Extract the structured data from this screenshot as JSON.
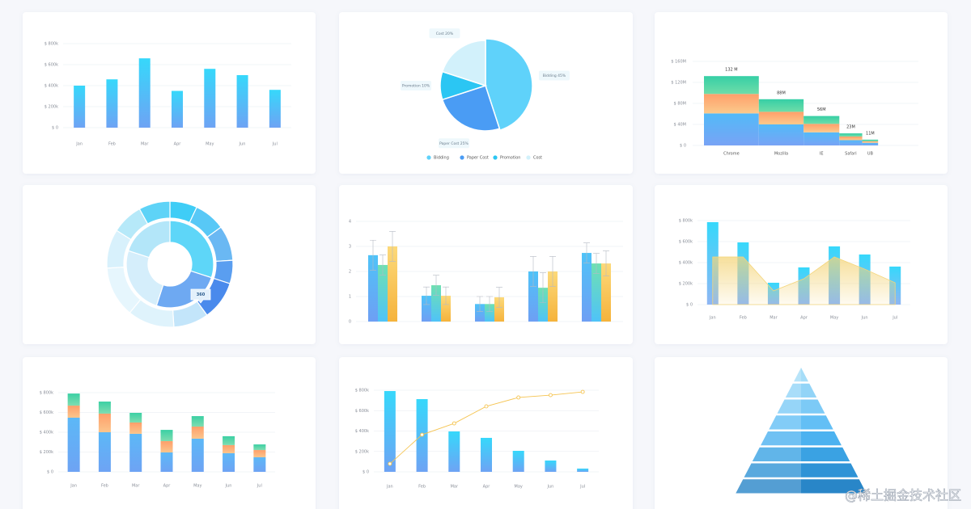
{
  "watermark": "@稀土掘金技术社区",
  "chart_data": [
    {
      "type": "bar",
      "categories": [
        "Jan",
        "Feb",
        "Mar",
        "Apr",
        "May",
        "Jun",
        "Jul"
      ],
      "values": [
        400,
        460,
        660,
        350,
        560,
        500,
        360
      ],
      "color": [
        "#36d8fb",
        "#6ea3f4"
      ],
      "ylim": [
        0,
        800
      ],
      "yticks": [
        {
          "value": 0,
          "label": "$ 0"
        },
        {
          "value": 200,
          "label": "$ 200k"
        },
        {
          "value": 400,
          "label": "$ 400k"
        },
        {
          "value": 600,
          "label": "$ 600k"
        },
        {
          "value": 800,
          "label": "$ 800k"
        }
      ],
      "grid": true
    },
    {
      "type": "pie",
      "categories": [
        "Bidding",
        "Paper Cost",
        "Promotion",
        "Cost"
      ],
      "values": [
        45,
        25,
        10,
        20
      ],
      "value_labels": [
        "Bidding 45%",
        "Paper Cost 25%",
        "Promotion 10%",
        "Cost 20%"
      ],
      "colors": [
        "#5fd2fa",
        "#4a9cf4",
        "#2bc6f3",
        "#d2f1fb"
      ],
      "legend": "bottom"
    },
    {
      "type": "marimekko",
      "categories": [
        "Chrome",
        "Mozilla",
        "IE",
        "Safari",
        "UB"
      ],
      "series": [
        {
          "values": [
            61,
            40,
            25,
            10,
            5
          ],
          "color": [
            "#52baf8",
            "#78a3f5"
          ]
        },
        {
          "values": [
            37,
            24,
            16,
            7,
            3
          ],
          "color": [
            "#ff9f6a",
            "#fbca8c"
          ]
        },
        {
          "values": [
            34,
            24,
            15,
            6,
            3
          ],
          "color": [
            "#36cfa6",
            "#6fdca8"
          ]
        }
      ],
      "total_labels": [
        "132 M",
        "88M",
        "56M",
        "23M",
        "11M"
      ],
      "ylim": [
        0,
        160
      ],
      "yticks": [
        {
          "value": 0,
          "label": "$ 0"
        },
        {
          "value": 40,
          "label": "$ 40M"
        },
        {
          "value": 80,
          "label": "$ 80M"
        },
        {
          "value": 120,
          "label": "$ 120M"
        },
        {
          "value": 160,
          "label": "$ 160M"
        }
      ],
      "grid": true
    },
    {
      "type": "sunburst",
      "rings": [
        {
          "values": [
            30,
            25,
            25,
            20
          ],
          "colors": [
            "#5ed6f8",
            "#6ea9f2",
            "#d5eefb",
            "#b3e6f9"
          ]
        },
        {
          "values": [
            7,
            8,
            9,
            6,
            10,
            9,
            12,
            13,
            10,
            8,
            8
          ],
          "colors": [
            "#3fcdf6",
            "#58c8f6",
            "#6ab8f3",
            "#5a9ef0",
            "#4a8aec",
            "#c3e5fa",
            "#dff3fc",
            "#e6f6fd",
            "#d8f1fc",
            "#b6e9f9",
            "#5ed3f7"
          ]
        }
      ],
      "tooltip": "360"
    },
    {
      "type": "grouped_bar",
      "categories": [
        null,
        null,
        null,
        null,
        null
      ],
      "series": [
        {
          "values": [
            2.65,
            1.03,
            0.7,
            2.0,
            2.74
          ],
          "errors": [
            0.6,
            0.35,
            0.3,
            0.6,
            0.4
          ],
          "color": [
            "#4fc3f8",
            "#6e9ff4"
          ]
        },
        {
          "values": [
            2.26,
            1.45,
            0.7,
            1.35,
            2.32
          ],
          "errors": [
            0.4,
            0.4,
            0.3,
            0.6,
            0.4
          ],
          "color": [
            "#6fe0b2",
            "#4fc3f8"
          ]
        },
        {
          "values": [
            3.0,
            1.03,
            0.97,
            2.0,
            2.32
          ],
          "errors": [
            0.6,
            0.35,
            0.4,
            0.6,
            0.5
          ],
          "color": [
            "#fcd97a",
            "#f5b33c"
          ]
        }
      ],
      "ylim": [
        0,
        4
      ],
      "yticks": [
        0,
        1,
        2,
        3,
        4
      ],
      "grid": true
    },
    {
      "type": "combo",
      "categories": [
        "Jan",
        "Feb",
        "Mar",
        "Apr",
        "May",
        "Jun",
        "Jul"
      ],
      "series": [
        {
          "kind": "bar",
          "values": [
            785,
            592,
            208,
            354,
            554,
            477,
            362
          ],
          "color": [
            "#36d8fb",
            "#8fb6f3"
          ]
        },
        {
          "kind": "area",
          "values": [
            454,
            454,
            131,
            246,
            454,
            338,
            208
          ],
          "color": "#f4d57a"
        }
      ],
      "ylim": [
        0,
        800
      ],
      "yticks": [
        {
          "value": 0,
          "label": "$ 0"
        },
        {
          "value": 200,
          "label": "$ 200k"
        },
        {
          "value": 400,
          "label": "$ 400k"
        },
        {
          "value": 600,
          "label": "$ 600k"
        },
        {
          "value": 800,
          "label": "$ 800k"
        }
      ],
      "grid": true
    },
    {
      "type": "stacked_bar",
      "categories": [
        "Jan",
        "Feb",
        "Mar",
        "Apr",
        "May",
        "Jun",
        "Jul"
      ],
      "series": [
        {
          "values": [
            547,
            400,
            384,
            196,
            335,
            188,
            147
          ],
          "color": [
            "#5cb8f7",
            "#6ea3f4"
          ]
        },
        {
          "values": [
            122,
            188,
            114,
            114,
            122,
            82,
            73
          ],
          "color": [
            "#ff9f6a",
            "#fbc58c"
          ]
        },
        {
          "values": [
            122,
            122,
            98,
            114,
            106,
            90,
            57
          ],
          "color": [
            "#3bd0a4",
            "#7fdcb0"
          ]
        }
      ],
      "ylim": [
        0,
        800
      ],
      "yticks": [
        {
          "value": 0,
          "label": "$ 0"
        },
        {
          "value": 200,
          "label": "$ 200k"
        },
        {
          "value": 400,
          "label": "$ 400k"
        },
        {
          "value": 600,
          "label": "$ 600k"
        },
        {
          "value": 800,
          "label": "$ 800k"
        }
      ],
      "grid": true
    },
    {
      "type": "combo",
      "categories": [
        "Jan",
        "Feb",
        "Mar",
        "Apr",
        "May",
        "Jun",
        "Jul"
      ],
      "series": [
        {
          "kind": "bar",
          "values": [
            792,
            713,
            396,
            333,
            206,
            111,
            32
          ],
          "color": [
            "#36d8fb",
            "#6ea3f4"
          ]
        },
        {
          "kind": "line",
          "values": [
            79,
            364,
            475,
            642,
            729,
            752,
            784
          ],
          "color": "#f5c451"
        }
      ],
      "ylim": [
        0,
        800
      ],
      "yticks": [
        {
          "value": 0,
          "label": "$ 0"
        },
        {
          "value": 200,
          "label": "$ 200k"
        },
        {
          "value": 400,
          "label": "$ 400k"
        },
        {
          "value": 600,
          "label": "$ 600k"
        },
        {
          "value": 800,
          "label": "$ 800k"
        }
      ],
      "grid": true
    },
    {
      "type": "pyramid",
      "categories": [
        null,
        null,
        null,
        null,
        null,
        null,
        null,
        null
      ],
      "colors": [
        "#a6ddf8",
        "#92d4f7",
        "#7ccaf6",
        "#63bff5",
        "#4cb2f0",
        "#3aa2e3",
        "#2f93d6",
        "#2986c8"
      ]
    }
  ]
}
